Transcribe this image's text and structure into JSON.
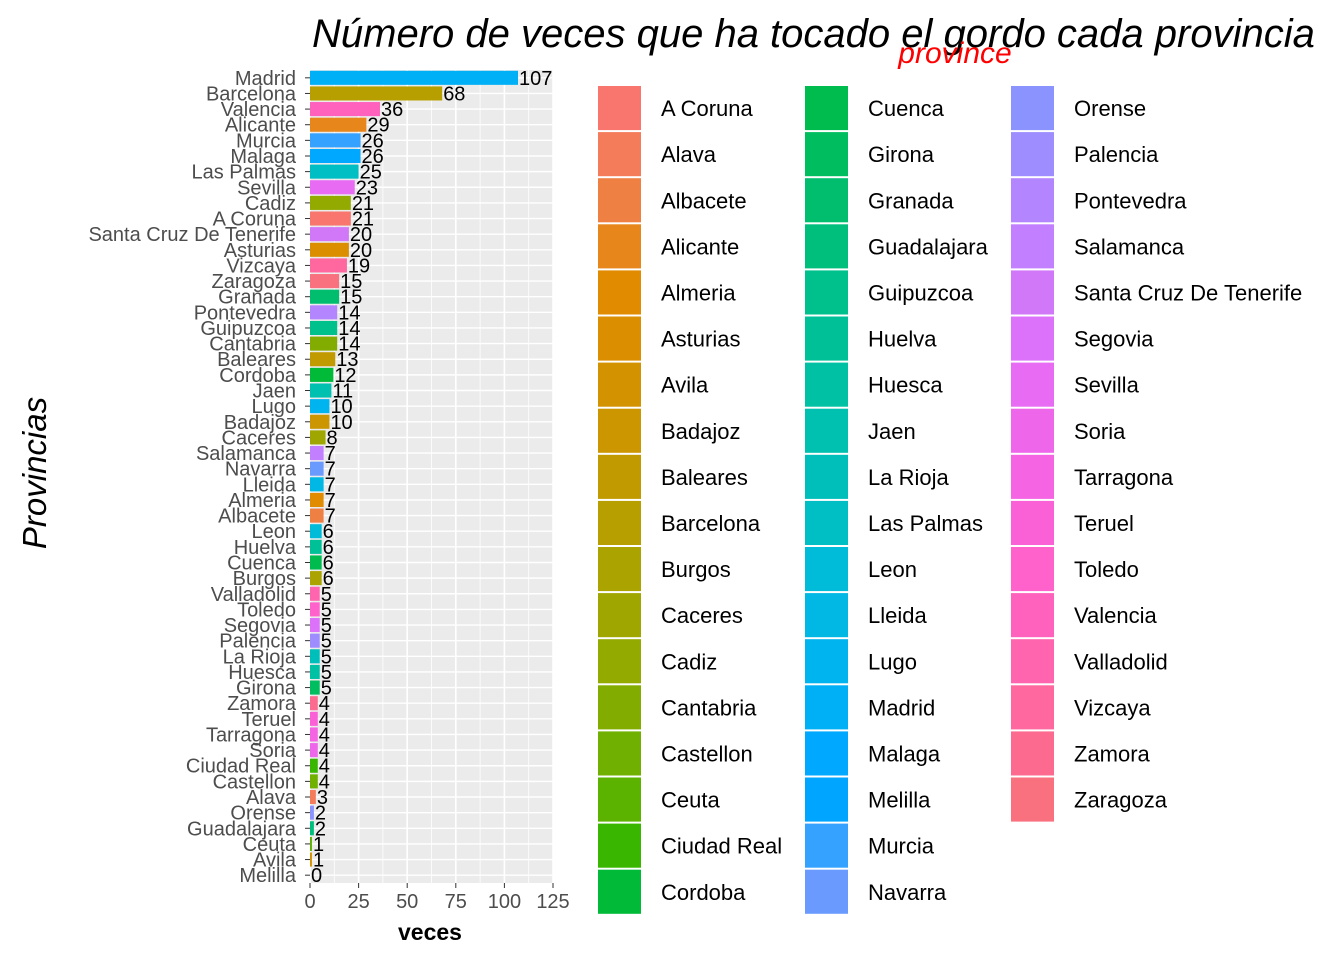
{
  "chart_data": {
    "type": "bar",
    "orientation": "horizontal",
    "title": "Número de veces que ha tocado el gordo cada provincia",
    "xlabel": "veces",
    "ylabel": "Provincias",
    "xlim": [
      0,
      125
    ],
    "xticks": [
      0,
      25,
      50,
      75,
      100,
      125
    ],
    "grid": true,
    "legend_title": "province",
    "legend_position": "right",
    "categories": [
      "Madrid",
      "Barcelona",
      "Valencia",
      "Alicante",
      "Murcia",
      "Malaga",
      "Las Palmas",
      "Sevilla",
      "Cadiz",
      "A Coruna",
      "Santa Cruz De Tenerife",
      "Asturias",
      "Vizcaya",
      "Zaragoza",
      "Granada",
      "Pontevedra",
      "Guipuzcoa",
      "Cantabria",
      "Baleares",
      "Cordoba",
      "Jaen",
      "Lugo",
      "Badajoz",
      "Caceres",
      "Salamanca",
      "Navarra",
      "Lleida",
      "Almeria",
      "Albacete",
      "Leon",
      "Huelva",
      "Cuenca",
      "Burgos",
      "Valladolid",
      "Toledo",
      "Segovia",
      "Palencia",
      "La Rioja",
      "Huesca",
      "Girona",
      "Zamora",
      "Teruel",
      "Tarragona",
      "Soria",
      "Ciudad Real",
      "Castellon",
      "Alava",
      "Orense",
      "Guadalajara",
      "Ceuta",
      "Avila",
      "Melilla"
    ],
    "values": [
      107,
      68,
      36,
      29,
      26,
      26,
      25,
      23,
      21,
      21,
      20,
      20,
      19,
      15,
      15,
      14,
      14,
      14,
      13,
      12,
      11,
      10,
      10,
      8,
      7,
      7,
      7,
      7,
      7,
      6,
      6,
      6,
      6,
      5,
      5,
      5,
      5,
      5,
      5,
      5,
      4,
      4,
      4,
      4,
      4,
      4,
      3,
      2,
      2,
      1,
      1,
      0
    ],
    "legend_entries": [
      {
        "name": "A Coruna",
        "color": "#F8766D"
      },
      {
        "name": "Alava",
        "color": "#F47C5A"
      },
      {
        "name": "Albacete",
        "color": "#EE8044"
      },
      {
        "name": "Alicante",
        "color": "#E7861B"
      },
      {
        "name": "Almeria",
        "color": "#E08B00"
      },
      {
        "name": "Asturias",
        "color": "#DB8E00"
      },
      {
        "name": "Avila",
        "color": "#D39200"
      },
      {
        "name": "Badajoz",
        "color": "#CB9600"
      },
      {
        "name": "Baleares",
        "color": "#C19A00"
      },
      {
        "name": "Barcelona",
        "color": "#B79F00"
      },
      {
        "name": "Burgos",
        "color": "#ABA300"
      },
      {
        "name": "Caceres",
        "color": "#A0A600"
      },
      {
        "name": "Cadiz",
        "color": "#93AA00"
      },
      {
        "name": "Cantabria",
        "color": "#82AD00"
      },
      {
        "name": "Castellon",
        "color": "#6FB000"
      },
      {
        "name": "Ceuta",
        "color": "#5BB300"
      },
      {
        "name": "Ciudad Real",
        "color": "#39B600"
      },
      {
        "name": "Cordoba",
        "color": "#00BA38"
      },
      {
        "name": "Cuenca",
        "color": "#00BB4E"
      },
      {
        "name": "Girona",
        "color": "#00BD5F"
      },
      {
        "name": "Granada",
        "color": "#00BE6D"
      },
      {
        "name": "Guadalajara",
        "color": "#00BF7D"
      },
      {
        "name": "Guipuzcoa",
        "color": "#00C08B"
      },
      {
        "name": "Huelva",
        "color": "#00C098"
      },
      {
        "name": "Huesca",
        "color": "#00C1A3"
      },
      {
        "name": "Jaen",
        "color": "#00C0AF"
      },
      {
        "name": "La Rioja",
        "color": "#00BFBA"
      },
      {
        "name": "Las Palmas",
        "color": "#00BFC4"
      },
      {
        "name": "Leon",
        "color": "#00BCD8"
      },
      {
        "name": "Lleida",
        "color": "#00B8E3"
      },
      {
        "name": "Lugo",
        "color": "#00B4EF"
      },
      {
        "name": "Madrid",
        "color": "#00B0F6"
      },
      {
        "name": "Malaga",
        "color": "#00A9FF"
      },
      {
        "name": "Melilla",
        "color": "#00A5FF"
      },
      {
        "name": "Murcia",
        "color": "#35A2FF"
      },
      {
        "name": "Navarra",
        "color": "#6B9AFF"
      },
      {
        "name": "Orense",
        "color": "#8B93FF"
      },
      {
        "name": "Palencia",
        "color": "#9D8DFF"
      },
      {
        "name": "Pontevedra",
        "color": "#B385FF"
      },
      {
        "name": "Salamanca",
        "color": "#C27FFF"
      },
      {
        "name": "Santa Cruz De Tenerife",
        "color": "#D078F8"
      },
      {
        "name": "Segovia",
        "color": "#DC71FA"
      },
      {
        "name": "Sevilla",
        "color": "#E76BF3"
      },
      {
        "name": "Soria",
        "color": "#EE67EA"
      },
      {
        "name": "Tarragona",
        "color": "#F564E3"
      },
      {
        "name": "Teruel",
        "color": "#FB61D7"
      },
      {
        "name": "Toledo",
        "color": "#FF62CB"
      },
      {
        "name": "Valencia",
        "color": "#FF62BC"
      },
      {
        "name": "Valladolid",
        "color": "#FF64AE"
      },
      {
        "name": "Vizcaya",
        "color": "#FF679F"
      },
      {
        "name": "Zamora",
        "color": "#FC6B8F"
      },
      {
        "name": "Zaragoza",
        "color": "#F9707E"
      }
    ]
  }
}
